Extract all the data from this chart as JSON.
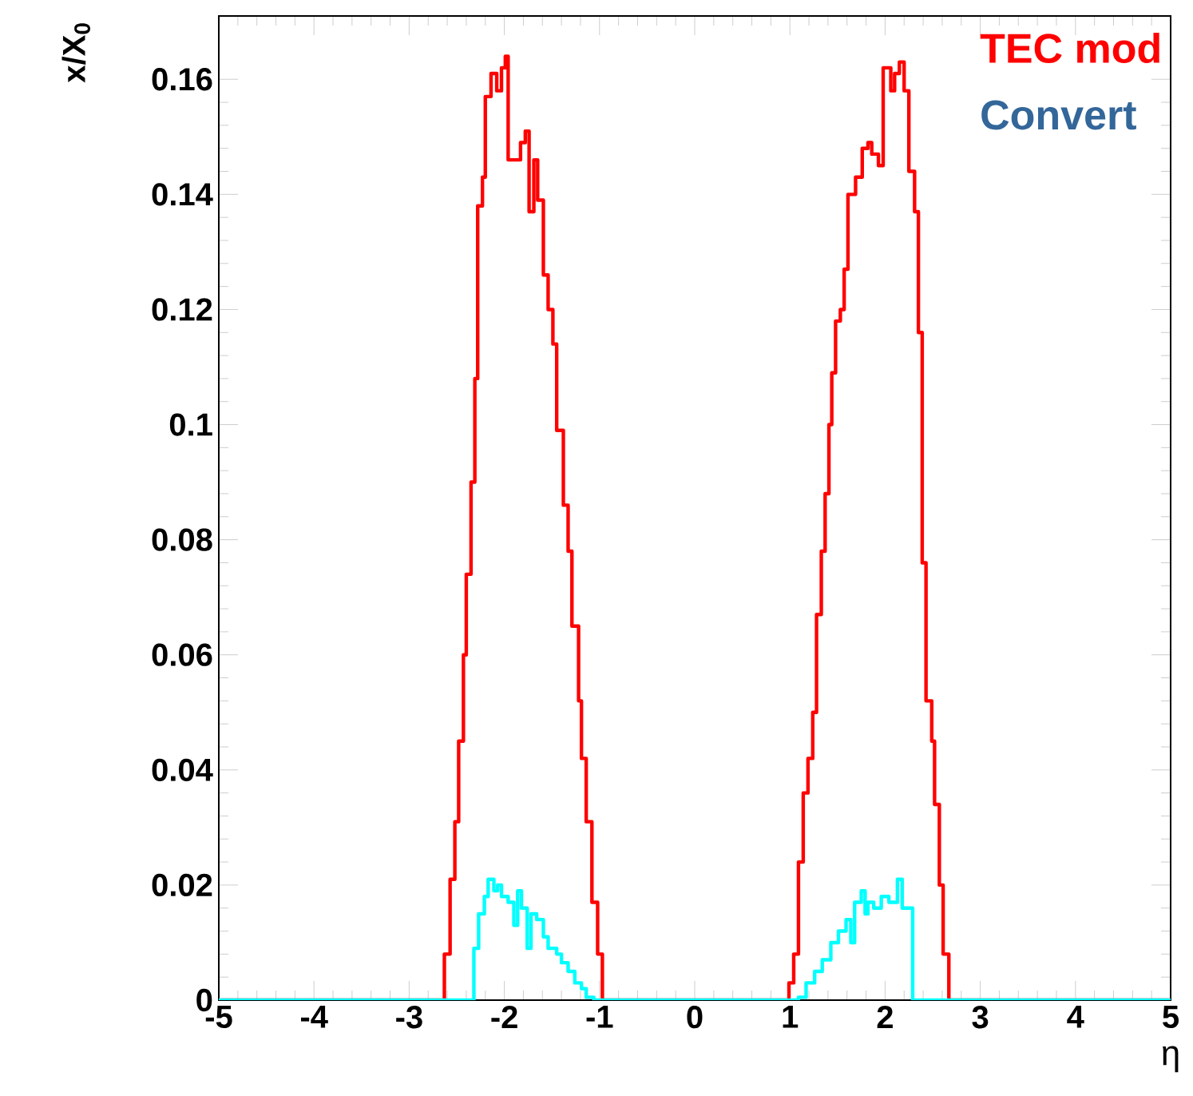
{
  "chart_data": {
    "type": "step",
    "xlabel": "η",
    "ylabel": "x/X$_{0}$",
    "xlim": [
      -5,
      5
    ],
    "ylim": [
      0,
      0.171
    ],
    "xticks": [
      -5,
      -4,
      -3,
      -2,
      -1,
      0,
      1,
      2,
      3,
      4,
      5
    ],
    "yticks": [
      0,
      0.02,
      0.04,
      0.06,
      0.08,
      {
        "value": 0.1,
        "label": "0.1"
      },
      0.12,
      0.14,
      0.16
    ],
    "grid": false,
    "marker": "none",
    "line_style": "solid",
    "annotations": [
      "TEC mod",
      "Convert"
    ],
    "series": [
      {
        "color": "#ff0000",
        "x": [
          -5,
          -2.63,
          -2.57,
          -2.52,
          -2.48,
          -2.43,
          -2.4,
          -2.35,
          -2.31,
          -2.28,
          -2.23,
          -2.2,
          -2.14,
          -2.08,
          -2.03,
          -1.99,
          -1.96,
          -1.87,
          -1.83,
          -1.78,
          -1.74,
          -1.69,
          -1.65,
          -1.59,
          -1.54,
          -1.49,
          -1.45,
          -1.38,
          -1.33,
          -1.29,
          -1.22,
          -1.19,
          -1.14,
          -1.08,
          -1.02,
          -0.97,
          0.99,
          1.04,
          1.09,
          1.14,
          1.19,
          1.24,
          1.28,
          1.33,
          1.37,
          1.41,
          1.44,
          1.48,
          1.53,
          1.57,
          1.61,
          1.69,
          1.76,
          1.82,
          1.86,
          1.93,
          1.98,
          2.06,
          2.1,
          2.15,
          2.2,
          2.25,
          2.31,
          2.35,
          2.39,
          2.43,
          2.49,
          2.52,
          2.57,
          2.61,
          2.67,
          5
        ],
        "values": [
          0,
          0.008,
          0.021,
          0.031,
          0.045,
          0.06,
          0.074,
          0.09,
          0.108,
          0.138,
          0.143,
          0.157,
          0.161,
          0.158,
          0.162,
          0.164,
          0.146,
          0.146,
          0.149,
          0.151,
          0.137,
          0.146,
          0.139,
          0.126,
          0.12,
          0.114,
          0.099,
          0.086,
          0.078,
          0.065,
          0.052,
          0.042,
          0.031,
          0.017,
          0.008,
          0,
          0.003,
          0.008,
          0.024,
          0.036,
          0.042,
          0.05,
          0.067,
          0.078,
          0.088,
          0.1,
          0.109,
          0.118,
          0.12,
          0.127,
          0.14,
          0.143,
          0.148,
          0.149,
          0.147,
          0.145,
          0.162,
          0.158,
          0.161,
          0.163,
          0.158,
          0.144,
          0.137,
          0.116,
          0.076,
          0.052,
          0.045,
          0.034,
          0.02,
          0.008,
          0,
          0
        ]
      },
      {
        "color": "#00ffff",
        "x": [
          -5,
          -2.32,
          -2.27,
          -2.21,
          -2.17,
          -2.11,
          -2.07,
          -2.03,
          -1.96,
          -1.9,
          -1.86,
          -1.82,
          -1.76,
          -1.72,
          -1.66,
          -1.59,
          -1.54,
          -1.45,
          -1.4,
          -1.33,
          -1.26,
          -1.19,
          -1.14,
          -1.06,
          1.09,
          1.17,
          1.26,
          1.34,
          1.43,
          1.51,
          1.59,
          1.64,
          1.68,
          1.75,
          1.79,
          1.82,
          1.88,
          1.96,
          2.04,
          2.13,
          2.18,
          2.29,
          5
        ],
        "values": [
          0,
          0.009,
          0.015,
          0.018,
          0.021,
          0.019,
          0.02,
          0.018,
          0.017,
          0.013,
          0.019,
          0.016,
          0.009,
          0.015,
          0.014,
          0.011,
          0.009,
          0.008,
          0.0065,
          0.005,
          0.003,
          0.002,
          0.0005,
          0,
          0.0005,
          0.003,
          0.005,
          0.007,
          0.01,
          0.012,
          0.014,
          0.01,
          0.017,
          0.019,
          0.015,
          0.017,
          0.016,
          0.018,
          0.017,
          0.021,
          0.016,
          0,
          0
        ]
      }
    ]
  }
}
